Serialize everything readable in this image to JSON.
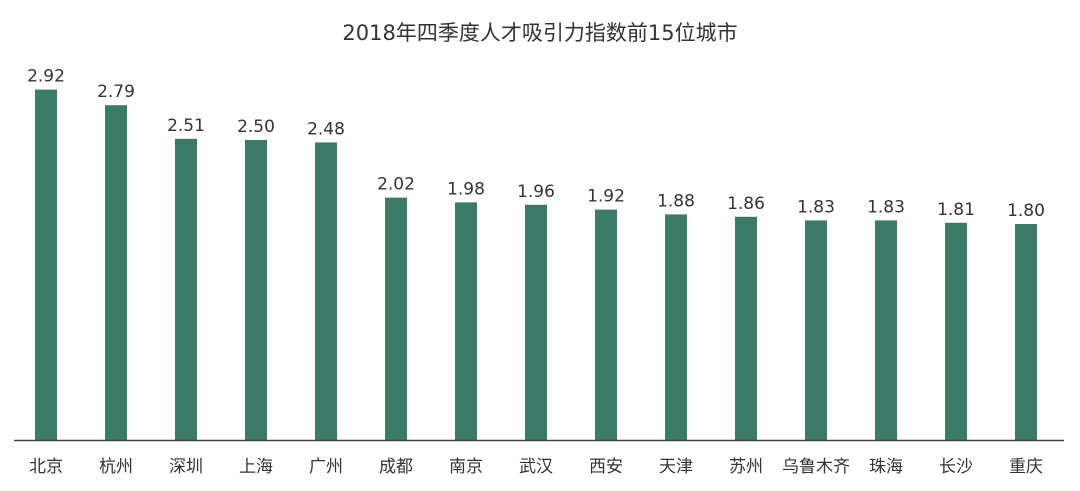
{
  "chart_data": {
    "type": "bar",
    "title": "2018年四季度人才吸引力指数前15位城市",
    "categories": [
      "北京",
      "杭州",
      "深圳",
      "上海",
      "广州",
      "成都",
      "南京",
      "武汉",
      "西安",
      "天津",
      "苏州",
      "乌鲁木齐",
      "珠海",
      "长沙",
      "重庆"
    ],
    "values": [
      2.92,
      2.79,
      2.51,
      2.5,
      2.48,
      2.02,
      1.98,
      1.96,
      1.92,
      1.88,
      1.86,
      1.83,
      1.83,
      1.81,
      1.8
    ],
    "value_labels": [
      "2.92",
      "2.79",
      "2.51",
      "2.50",
      "2.48",
      "2.02",
      "1.98",
      "1.96",
      "1.92",
      "1.88",
      "1.86",
      "1.83",
      "1.83",
      "1.81",
      "1.80"
    ],
    "xlabel": "",
    "ylabel": "",
    "ylim": [
      0,
      3.0
    ],
    "grid": false,
    "legend": "none",
    "bar_color": "#3b7a67",
    "axis_color": "#444444"
  }
}
